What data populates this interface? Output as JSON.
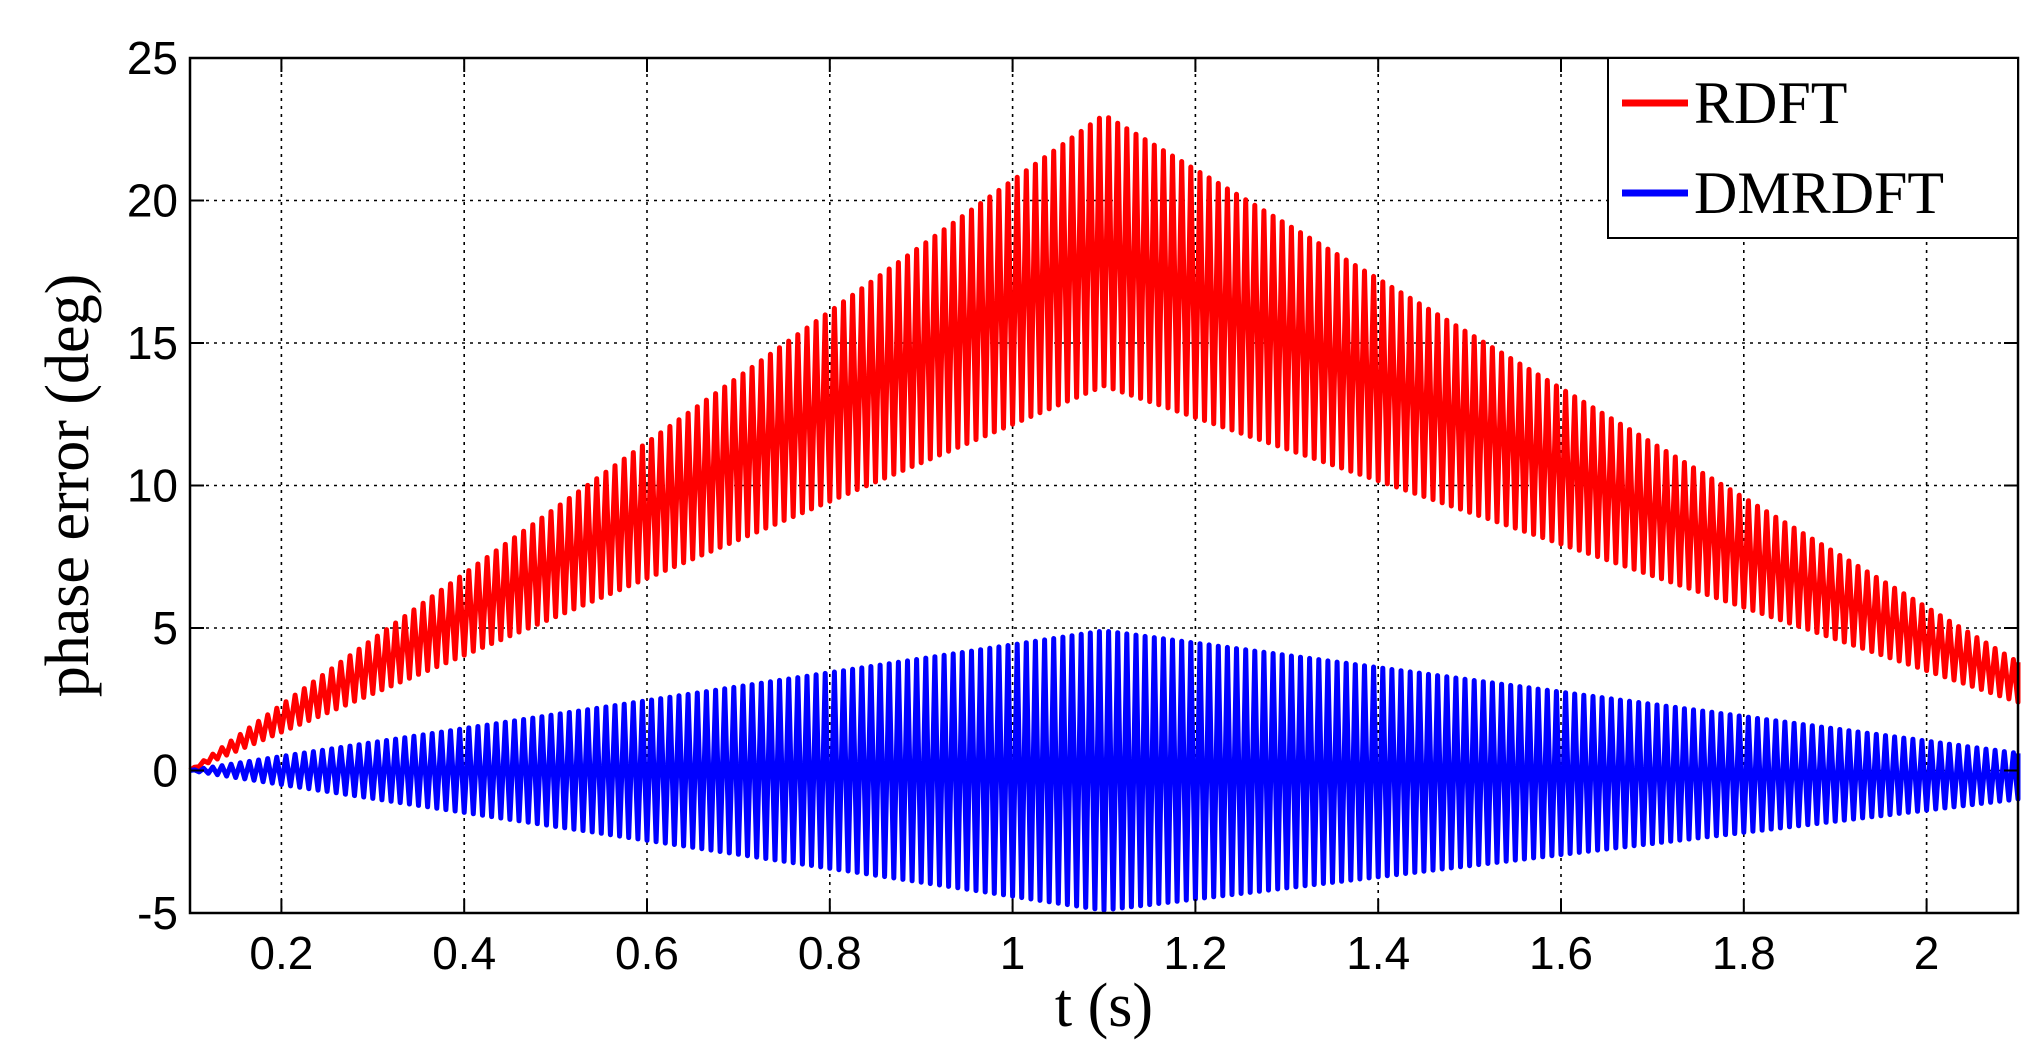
{
  "chart_data": {
    "type": "line",
    "xlabel": "t (s)",
    "ylabel": "phase error (deg)",
    "xlim": [
      0.1,
      2.1
    ],
    "ylim": [
      -5,
      25
    ],
    "xticks": [
      0.2,
      0.4,
      0.6,
      0.8,
      1,
      1.2,
      1.4,
      1.6,
      1.8,
      2
    ],
    "xtick_labels": [
      "0.2",
      "0.4",
      "0.6",
      "0.8",
      "1",
      "1.2",
      "1.4",
      "1.6",
      "1.8",
      "2"
    ],
    "yticks": [
      -5,
      0,
      5,
      10,
      15,
      20,
      25
    ],
    "ytick_labels": [
      "-5",
      "0",
      "5",
      "10",
      "15",
      "20",
      "25"
    ],
    "grid": true,
    "legend_position": "top-right",
    "oscillation_period": 0.01,
    "series": [
      {
        "name": "RDFT",
        "color": "#ff0000",
        "envelope": {
          "x": [
            0.1,
            1.1,
            2.1
          ],
          "upper": [
            0.0,
            23.0,
            3.8
          ],
          "lower": [
            0.0,
            13.5,
            2.4
          ]
        }
      },
      {
        "name": "DMRDFT",
        "color": "#0000ff",
        "envelope": {
          "x": [
            0.1,
            1.1,
            2.1
          ],
          "upper": [
            0.0,
            4.9,
            0.6
          ],
          "lower": [
            0.0,
            -4.9,
            -1.0
          ]
        }
      }
    ]
  }
}
